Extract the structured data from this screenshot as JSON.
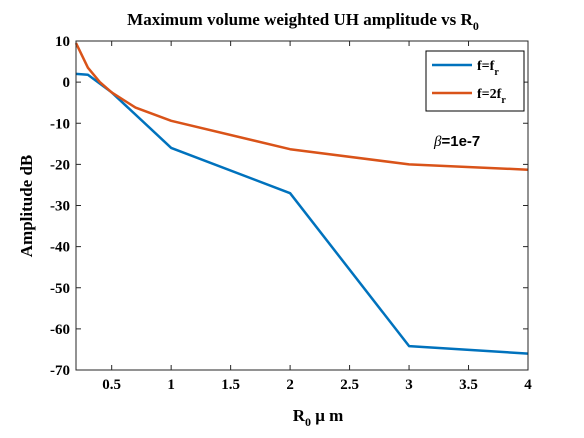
{
  "chart_data": {
    "type": "line",
    "title": "Maximum volume weighted UH amplitude vs R",
    "title_sub": "0",
    "xlabel": {
      "main": "R",
      "sub": "0",
      "rest": " μ m"
    },
    "ylabel": "Amplitude dB",
    "xlim": [
      0.2,
      4
    ],
    "ylim": [
      -70,
      10
    ],
    "xticks": [
      0.5,
      1,
      1.5,
      2,
      2.5,
      3,
      3.5,
      4
    ],
    "xtick_labels": [
      "0.5",
      "1",
      "1.5",
      "2",
      "2.5",
      "3",
      "3.5",
      "4"
    ],
    "yticks": [
      10,
      0,
      -10,
      -20,
      -30,
      -40,
      -50,
      -60,
      -70
    ],
    "ytick_labels": [
      "10",
      "0",
      "-10",
      "-20",
      "-30",
      "-40",
      "-50",
      "-60",
      "-70"
    ],
    "grid": false,
    "legend_position": "top-right",
    "annotation": {
      "symbol": "β",
      "text": "=1e-7"
    },
    "series": [
      {
        "name": "f=f_r",
        "legend": {
          "main": "f=f",
          "sub": "r"
        },
        "color": "#0072BD",
        "x": [
          0.2,
          0.3,
          0.5,
          1,
          2,
          3,
          4
        ],
        "y": [
          2,
          1.8,
          -2.5,
          -16,
          -27,
          -64.2,
          -66
        ]
      },
      {
        "name": "f=2f_r",
        "legend": {
          "main": "f=2f",
          "sub": "r"
        },
        "color": "#D95319",
        "x": [
          0.2,
          0.3,
          0.4,
          0.5,
          0.7,
          1,
          2,
          3,
          4
        ],
        "y": [
          9.5,
          3.5,
          0,
          -2.5,
          -6.2,
          -9.4,
          -16.3,
          -20,
          -21.3
        ]
      }
    ]
  }
}
